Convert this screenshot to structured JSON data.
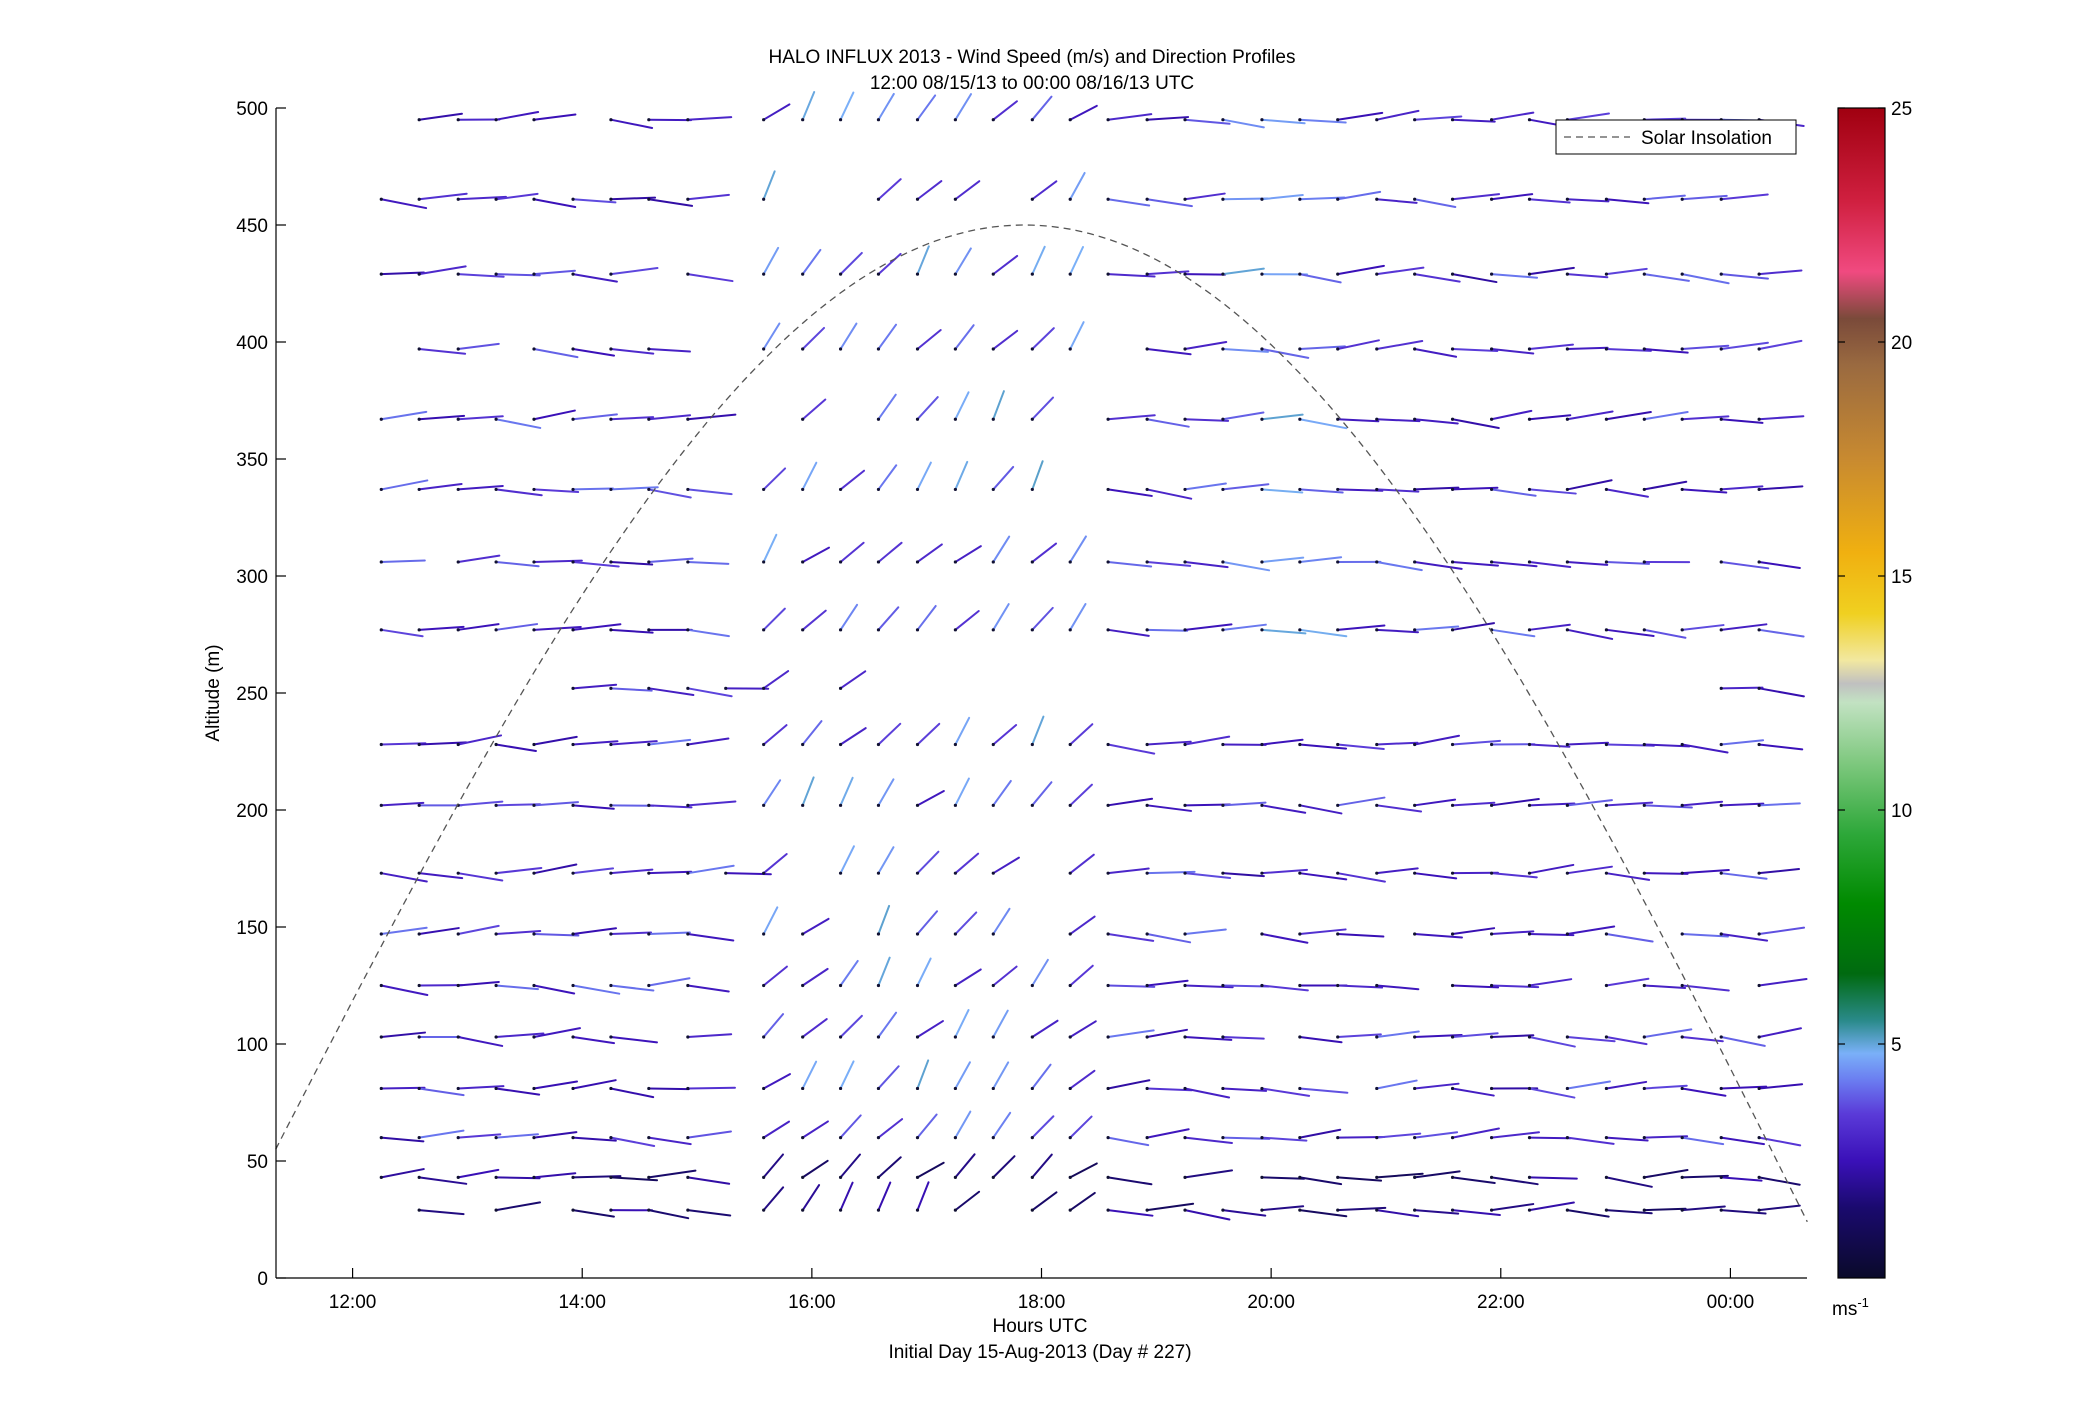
{
  "chart_data": {
    "type": "wind-barb-profile",
    "title": "HALO INFLUX 2013 - Wind Speed (m/s) and Direction Profiles",
    "subtitle": "12:00 08/15/13 to 00:00 08/16/13  UTC",
    "xlabel": "Hours UTC",
    "xlabel2": "Initial Day 15-Aug-2013 (Day # 227)",
    "ylabel": "Altitude (m)",
    "xlim": [
      11.333,
      24.667
    ],
    "ylim": [
      0,
      500
    ],
    "x_ticks": [
      {
        "value": 12,
        "label": "12:00"
      },
      {
        "value": 14,
        "label": "14:00"
      },
      {
        "value": 16,
        "label": "16:00"
      },
      {
        "value": 18,
        "label": "18:00"
      },
      {
        "value": 20,
        "label": "20:00"
      },
      {
        "value": 22,
        "label": "22:00"
      },
      {
        "value": 24,
        "label": "00:00"
      }
    ],
    "y_ticks": [
      {
        "value": 0,
        "label": "0"
      },
      {
        "value": 50,
        "label": "50"
      },
      {
        "value": 100,
        "label": "100"
      },
      {
        "value": 150,
        "label": "150"
      },
      {
        "value": 200,
        "label": "200"
      },
      {
        "value": 250,
        "label": "250"
      },
      {
        "value": 300,
        "label": "300"
      },
      {
        "value": 350,
        "label": "350"
      },
      {
        "value": 400,
        "label": "400"
      },
      {
        "value": 450,
        "label": "450"
      },
      {
        "value": 500,
        "label": "500"
      }
    ],
    "legend": {
      "label": "Solar Insolation",
      "position": "top-right",
      "line_style": "dashed",
      "color": "#555555"
    },
    "solar_insolation": {
      "peak_time": 17.85,
      "peak_altitude": 450,
      "start_time": 11.33,
      "start_altitude": 55,
      "end_time": 24.67,
      "end_altitude": 24
    },
    "colorbar": {
      "range": [
        0,
        25
      ],
      "ticks": [
        {
          "value": 5,
          "label": "5"
        },
        {
          "value": 10,
          "label": "10"
        },
        {
          "value": 15,
          "label": "15"
        },
        {
          "value": 20,
          "label": "20"
        },
        {
          "value": 25,
          "label": "25"
        }
      ],
      "unit_label": "ms",
      "unit_exponent": "-1",
      "stops": [
        {
          "v": 0,
          "c": "#0a0a2a"
        },
        {
          "v": 1.5,
          "c": "#1a0a6e"
        },
        {
          "v": 2.5,
          "c": "#3a10b8"
        },
        {
          "v": 3.5,
          "c": "#5a3ad8"
        },
        {
          "v": 4.2,
          "c": "#6a7af0"
        },
        {
          "v": 4.8,
          "c": "#7ab0f8"
        },
        {
          "v": 5.5,
          "c": "#2a8a8a"
        },
        {
          "v": 6.5,
          "c": "#006a10"
        },
        {
          "v": 8,
          "c": "#008a00"
        },
        {
          "v": 9.5,
          "c": "#2ea83a"
        },
        {
          "v": 11,
          "c": "#7ec87e"
        },
        {
          "v": 12.3,
          "c": "#c2e2c2"
        },
        {
          "v": 12.7,
          "c": "#c0c0c0"
        },
        {
          "v": 13.2,
          "c": "#f2e8a0"
        },
        {
          "v": 14.2,
          "c": "#f0d020"
        },
        {
          "v": 15.5,
          "c": "#f0b010"
        },
        {
          "v": 17.5,
          "c": "#c88a30"
        },
        {
          "v": 19.5,
          "c": "#9a6a40"
        },
        {
          "v": 20.5,
          "c": "#7a4a3a"
        },
        {
          "v": 21.5,
          "c": "#f04a80"
        },
        {
          "v": 23,
          "c": "#d02040"
        },
        {
          "v": 25,
          "c": "#a00010"
        }
      ]
    },
    "wind_vector_note": "Each profile sample is drawn as a short wind segment whose color follows the speed colorbar; pattern gaps follow the original figure.",
    "altitude_levels": [
      29,
      43,
      60,
      81,
      103,
      125,
      147,
      173,
      202,
      228,
      252,
      277,
      306,
      337,
      367,
      397,
      429,
      461,
      495
    ],
    "profile_times": [
      12.25,
      12.58,
      12.92,
      13.25,
      13.58,
      13.92,
      14.25,
      14.58,
      14.92,
      15.25,
      15.58,
      15.92,
      16.25,
      16.58,
      16.92,
      17.25,
      17.58,
      17.92,
      18.25,
      18.58,
      18.92,
      19.25,
      19.58,
      19.92,
      20.25,
      20.58,
      20.92,
      21.25,
      21.58,
      21.92,
      22.25,
      22.58,
      22.92,
      23.25,
      23.58,
      23.92,
      24.25
    ]
  }
}
